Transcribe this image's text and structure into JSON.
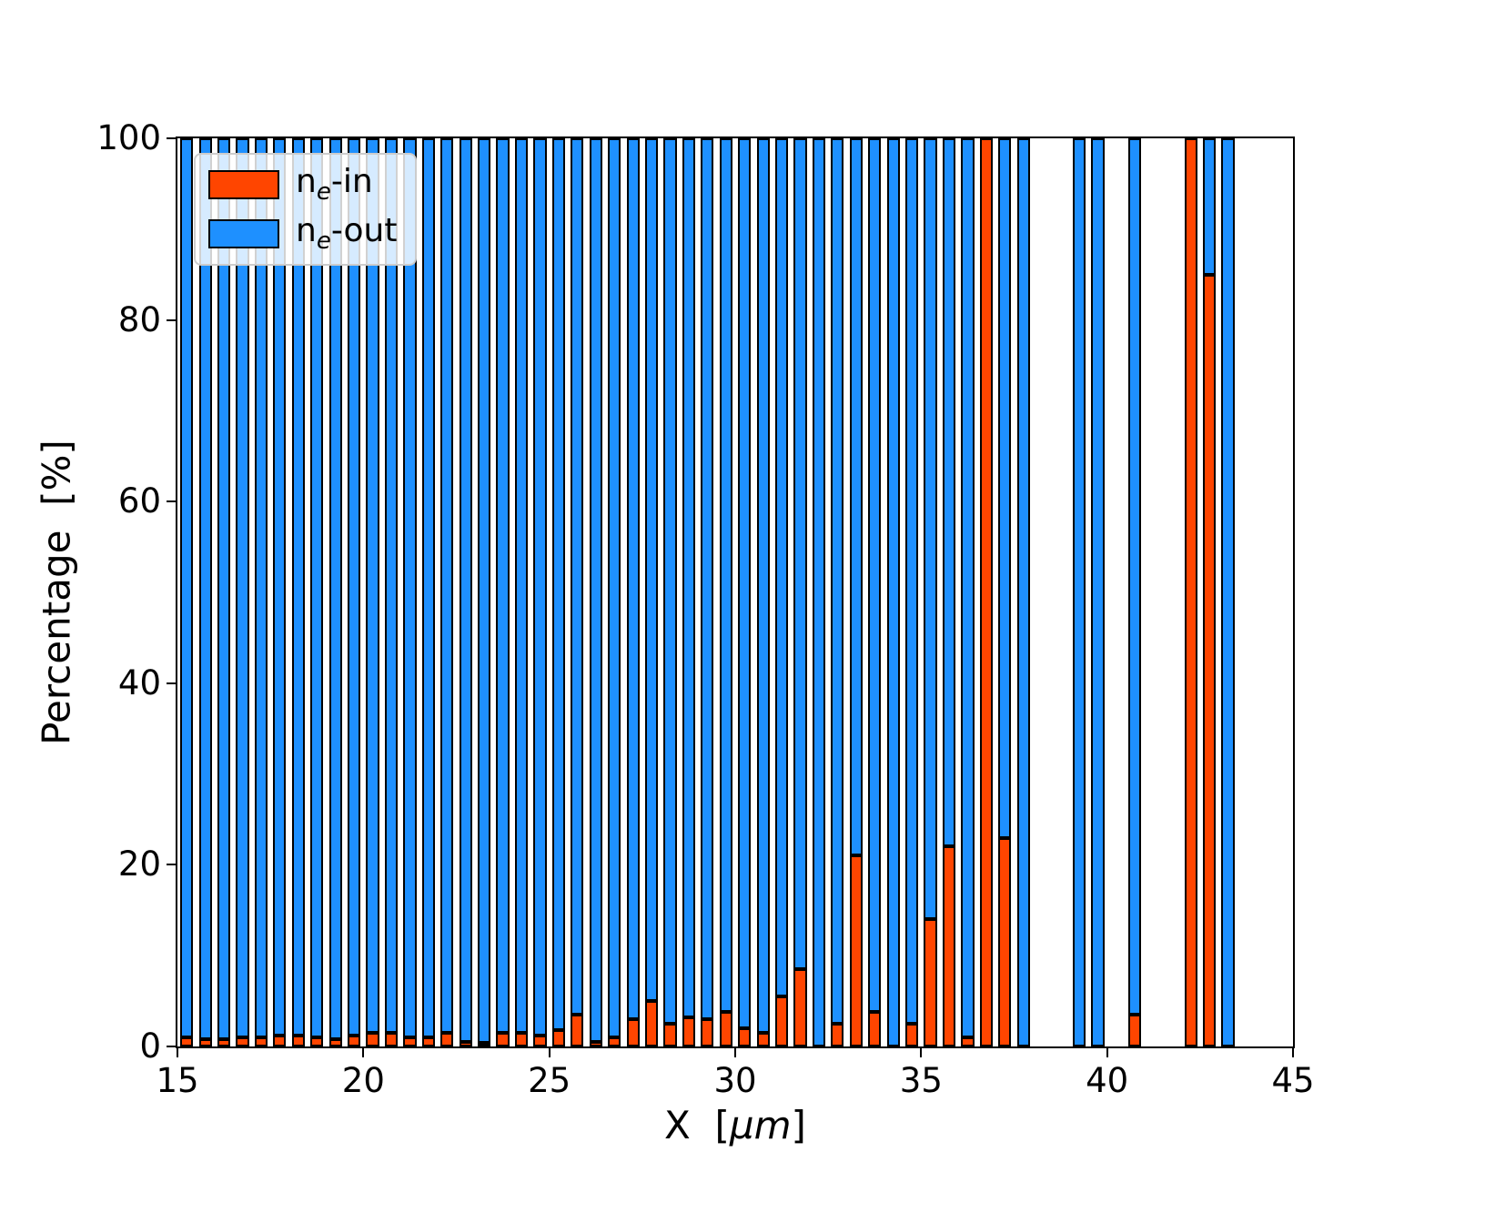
{
  "figure": {
    "background": "#ffffff"
  },
  "chart_data": {
    "type": "bar",
    "stacked": true,
    "title": "",
    "xlabel": "X [μm]",
    "ylabel": "Percentage  [%]",
    "xlim": [
      15,
      45
    ],
    "ylim": [
      0,
      100
    ],
    "x_ticks": [
      15,
      20,
      25,
      30,
      35,
      40,
      45
    ],
    "y_ticks": [
      0,
      20,
      40,
      60,
      80,
      100
    ],
    "grid": false,
    "legend_position": "upper-left",
    "bar_width_um": 0.35,
    "edge_color": "#000000",
    "x": [
      15.25,
      15.75,
      16.25,
      16.75,
      17.25,
      17.75,
      18.25,
      18.75,
      19.25,
      19.75,
      20.25,
      20.75,
      21.25,
      21.75,
      22.25,
      22.75,
      23.25,
      23.75,
      24.25,
      24.75,
      25.25,
      25.75,
      26.25,
      26.75,
      27.25,
      27.75,
      28.25,
      28.75,
      29.25,
      29.75,
      30.25,
      30.75,
      31.25,
      31.75,
      32.25,
      32.75,
      33.25,
      33.75,
      34.25,
      34.75,
      35.25,
      35.75,
      36.25,
      36.75,
      37.25,
      37.75,
      39.25,
      39.75,
      40.75,
      42.25,
      42.75,
      43.25
    ],
    "series": [
      {
        "name": "ne-in",
        "color": "#FF4500",
        "values": [
          1.0,
          0.8,
          0.8,
          1.0,
          1.0,
          1.2,
          1.2,
          1.0,
          0.8,
          1.2,
          1.5,
          1.5,
          1.0,
          1.0,
          1.5,
          0.5,
          0.4,
          1.5,
          1.5,
          1.2,
          1.8,
          3.5,
          0.5,
          1.0,
          3.0,
          5.0,
          2.5,
          3.2,
          3.0,
          3.8,
          2.0,
          1.5,
          5.5,
          8.5,
          0.0,
          2.5,
          21.0,
          3.8,
          0.0,
          2.5,
          14.0,
          22.0,
          1.0,
          100.0,
          23.0,
          0.0,
          0.0,
          0.0,
          3.5,
          100.0,
          85.0,
          0.0
        ]
      },
      {
        "name": "ne-out",
        "color": "#1E90FF",
        "values": [
          99.0,
          99.2,
          99.2,
          99.0,
          99.0,
          98.8,
          98.8,
          99.0,
          99.2,
          98.8,
          98.5,
          98.5,
          99.0,
          99.0,
          98.5,
          99.5,
          99.6,
          98.5,
          98.5,
          98.8,
          98.2,
          96.5,
          99.5,
          99.0,
          97.0,
          95.0,
          97.5,
          96.8,
          97.0,
          96.2,
          98.0,
          98.5,
          94.5,
          91.5,
          100.0,
          97.5,
          79.0,
          96.2,
          100.0,
          97.5,
          86.0,
          78.0,
          99.0,
          0.0,
          77.0,
          100.0,
          100.0,
          100.0,
          96.5,
          0.0,
          15.0,
          100.0
        ]
      }
    ]
  },
  "legend": {
    "items": [
      {
        "base": "n",
        "sub": "e",
        "suffix": "-in",
        "color": "#FF4500"
      },
      {
        "base": "n",
        "sub": "e",
        "suffix": "-out",
        "color": "#1E90FF"
      }
    ]
  },
  "axis_labels": {
    "xlabel_pre": "X  [",
    "xlabel_math": "μm",
    "xlabel_post": "]",
    "ylabel": "Percentage  [%]"
  }
}
